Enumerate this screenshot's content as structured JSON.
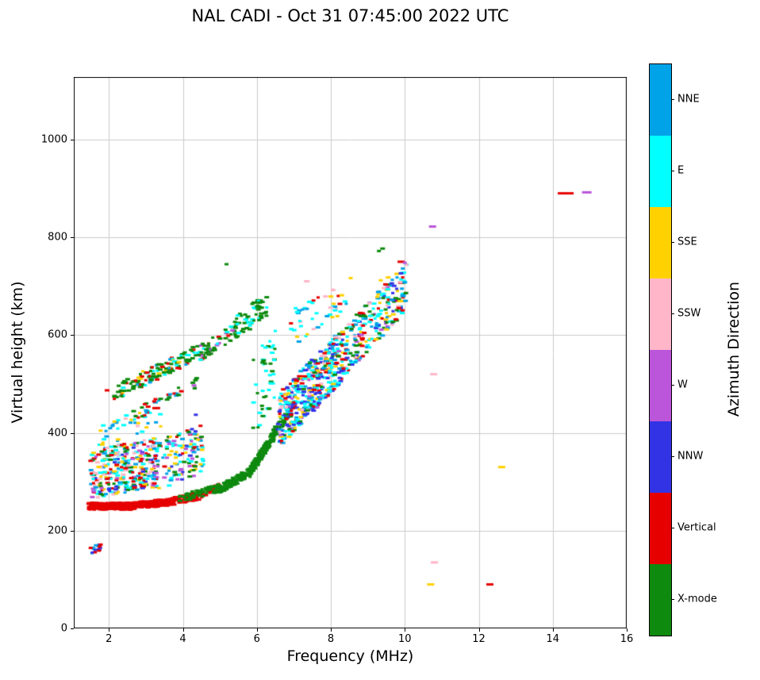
{
  "chart_data": {
    "type": "scatter",
    "title": "NAL CADI - Oct 31 07:45:00 2022 UTC",
    "xlabel": "Frequency (MHz)",
    "ylabel": "Virtual height (km)",
    "colorbar_label": "Azimuth Direction",
    "xlim": [
      1.05,
      16.0
    ],
    "ylim": [
      0,
      1128
    ],
    "xticks": [
      2,
      4,
      6,
      8,
      10,
      12,
      14,
      16
    ],
    "yticks": [
      0,
      200,
      400,
      600,
      800,
      1000
    ],
    "grid": true,
    "grid_color": "#cccccc",
    "marker": {
      "width": 5,
      "height": 3
    },
    "categories": [
      {
        "name": "NNE",
        "color": "#00A2E8"
      },
      {
        "name": "E",
        "color": "#00FFFF"
      },
      {
        "name": "SSE",
        "color": "#FFD100"
      },
      {
        "name": "SSW",
        "color": "#FFB6C8"
      },
      {
        "name": "W",
        "color": "#BB55D9"
      },
      {
        "name": "NNW",
        "color": "#3333E6"
      },
      {
        "name": "Vertical",
        "color": "#E60000"
      },
      {
        "name": "X-mode",
        "color": "#0E8A0E"
      }
    ],
    "clusters": [
      {
        "n": 260,
        "f": [
          1.45,
          2.6
        ],
        "h": [
          250,
          250
        ],
        "j": 7,
        "colors": {
          "Vertical": 1
        }
      },
      {
        "n": 160,
        "f": [
          2.6,
          3.6
        ],
        "h": [
          251,
          258
        ],
        "j": 7,
        "colors": {
          "Vertical": 1
        }
      },
      {
        "n": 90,
        "f": [
          3.6,
          4.5
        ],
        "h": [
          258,
          272
        ],
        "j": 8,
        "colors": {
          "Vertical": 1
        }
      },
      {
        "n": 30,
        "f": [
          4.5,
          5.1
        ],
        "h": [
          272,
          292
        ],
        "j": 8,
        "colors": {
          "Vertical": 1
        }
      },
      {
        "n": 60,
        "f": [
          3.9,
          5.0
        ],
        "h": [
          265,
          288
        ],
        "j": 8,
        "colors": {
          "X-mode": 1
        }
      },
      {
        "n": 110,
        "f": [
          5.0,
          5.8
        ],
        "h": [
          285,
          320
        ],
        "j": 9,
        "colors": {
          "X-mode": 1
        }
      },
      {
        "n": 170,
        "f": [
          5.8,
          6.5
        ],
        "h": [
          318,
          400
        ],
        "j": 10,
        "colors": {
          "X-mode": 1
        }
      },
      {
        "n": 55,
        "f": [
          6.45,
          6.95
        ],
        "h": [
          398,
          452
        ],
        "j": 11,
        "colors": {
          "X-mode": 0.85,
          "NNW": 0.15
        }
      },
      {
        "n": 330,
        "f": [
          1.5,
          3.3
        ],
        "h": [
          315,
          340
        ],
        "j": 50,
        "colors": {
          "Vertical": 0.2,
          "E": 0.2,
          "NNE": 0.13,
          "SSE": 0.13,
          "SSW": 0.13,
          "X-mode": 0.09,
          "NNW": 0.06,
          "W": 0.06
        }
      },
      {
        "n": 130,
        "f": [
          3.2,
          4.6
        ],
        "h": [
          330,
          370
        ],
        "j": 50,
        "colors": {
          "E": 0.24,
          "NNE": 0.2,
          "X-mode": 0.16,
          "W": 0.1,
          "NNW": 0.1,
          "SSE": 0.1,
          "Vertical": 0.1
        }
      },
      {
        "n": 40,
        "f": [
          1.7,
          3.4
        ],
        "h": [
          398,
          432
        ],
        "j": 25,
        "colors": {
          "SSE": 0.35,
          "E": 0.3,
          "SSW": 0.15,
          "NNE": 0.2
        }
      },
      {
        "n": 130,
        "f": [
          2.1,
          4.4
        ],
        "h": [
          480,
          565
        ],
        "j": 16,
        "colors": {
          "X-mode": 0.5,
          "Vertical": 0.2,
          "E": 0.15,
          "SSE": 0.1,
          "NNE": 0.05
        }
      },
      {
        "n": 60,
        "f": [
          4.4,
          5.5
        ],
        "h": [
          560,
          612
        ],
        "j": 16,
        "colors": {
          "X-mode": 0.6,
          "E": 0.2,
          "Vertical": 0.1,
          "W": 0.1
        }
      },
      {
        "n": 60,
        "f": [
          5.4,
          6.3
        ],
        "h": [
          612,
          665
        ],
        "j": 25,
        "colors": {
          "X-mode": 0.7,
          "E": 0.3
        }
      },
      {
        "n": 45,
        "f": [
          5.9,
          6.5
        ],
        "h": [
          470,
          545
        ],
        "j": 80,
        "colors": {
          "X-mode": 0.5,
          "E": 0.5
        }
      },
      {
        "n": 35,
        "f": [
          2.6,
          4.4
        ],
        "h": [
          432,
          505
        ],
        "j": 12,
        "colors": {
          "X-mode": 0.5,
          "Vertical": 0.3,
          "NNE": 0.2
        }
      },
      {
        "n": 420,
        "f": [
          6.6,
          8.3
        ],
        "h": [
          425,
          560
        ],
        "j": 55,
        "colors": {
          "NNW": 0.22,
          "E": 0.2,
          "NNE": 0.16,
          "SSE": 0.12,
          "Vertical": 0.1,
          "SSW": 0.08,
          "X-mode": 0.07,
          "W": 0.05
        }
      },
      {
        "n": 230,
        "f": [
          8.3,
          10.05
        ],
        "h": [
          560,
          700
        ],
        "j": 50,
        "colors": {
          "E": 0.22,
          "NNE": 0.18,
          "NNW": 0.16,
          "SSE": 0.12,
          "Vertical": 0.12,
          "X-mode": 0.12,
          "W": 0.04,
          "SSW": 0.04
        }
      },
      {
        "n": 45,
        "f": [
          6.9,
          8.6
        ],
        "h": [
          605,
          690
        ],
        "j": 35,
        "colors": {
          "E": 0.3,
          "NNE": 0.2,
          "SSE": 0.2,
          "Vertical": 0.15,
          "SSW": 0.15
        }
      },
      {
        "n": 16,
        "f": [
          1.5,
          1.85
        ],
        "h": [
          160,
          165
        ],
        "j": 9,
        "colors": {
          "NNW": 0.4,
          "Vertical": 0.3,
          "NNE": 0.3
        }
      }
    ],
    "points": [
      [
        14.35,
        890,
        "Vertical",
        20
      ],
      [
        14.92,
        892,
        "W",
        12
      ],
      [
        10.75,
        822,
        "W",
        9
      ],
      [
        10.78,
        520,
        "SSW",
        9
      ],
      [
        12.62,
        330,
        "SSE",
        9
      ],
      [
        10.8,
        135,
        "SSW",
        9
      ],
      [
        10.7,
        90,
        "SSE",
        9
      ],
      [
        12.3,
        90,
        "Vertical",
        9
      ],
      [
        7.35,
        710,
        "SSW",
        7
      ],
      [
        5.18,
        745,
        "X-mode",
        5
      ],
      [
        9.9,
        750,
        "Vertical",
        9
      ],
      [
        10.0,
        748,
        "W",
        5
      ],
      [
        9.4,
        777,
        "X-mode",
        6
      ],
      [
        9.3,
        772,
        "X-mode",
        5
      ],
      [
        9.55,
        718,
        "SSE",
        6
      ],
      [
        9.35,
        712,
        "SSE",
        5
      ],
      [
        8.95,
        660,
        "X-mode",
        6
      ],
      [
        9.05,
        648,
        "X-mode",
        5
      ],
      [
        8.9,
        640,
        "X-mode",
        5
      ],
      [
        9.95,
        680,
        "NNE",
        7
      ],
      [
        10.02,
        670,
        "NNE",
        6
      ],
      [
        10.0,
        708,
        "NNE",
        6
      ],
      [
        9.93,
        645,
        "E",
        6
      ],
      [
        8.7,
        565,
        "X-mode",
        6
      ],
      [
        8.85,
        578,
        "Vertical",
        6
      ],
      [
        8.6,
        558,
        "X-mode",
        5
      ],
      [
        1.95,
        487,
        "Vertical",
        6
      ],
      [
        4.35,
        437,
        "NNW",
        5
      ],
      [
        4.3,
        497,
        "W",
        6
      ],
      [
        7.42,
        668,
        "E",
        6
      ],
      [
        7.05,
        655,
        "E",
        5
      ]
    ]
  }
}
